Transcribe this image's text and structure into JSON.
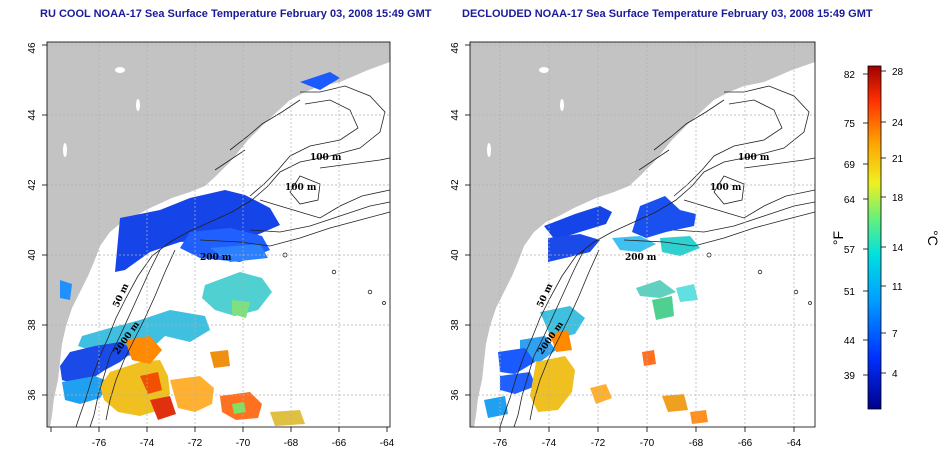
{
  "left_panel": {
    "title": "RU COOL NOAA-17 Sea Surface Temperature February 03, 2008 15:49 GMT"
  },
  "right_panel": {
    "title": "DECLOUDED NOAA-17 Sea Surface Temperature February 03, 2008 15:49 GMT"
  },
  "axes": {
    "x_ticks": [
      "-76",
      "-74",
      "-72",
      "-70",
      "-68",
      "-66",
      "-64"
    ],
    "y_ticks": [
      "36",
      "38",
      "40",
      "42",
      "44",
      "46"
    ]
  },
  "contour_labels": {
    "m100_a": "100 m",
    "m100_b": "100 m",
    "m200": "200 m",
    "m50": "50 m",
    "m2000": "2000 m"
  },
  "colorbar": {
    "f_label": "°F",
    "c_label": "°C",
    "f_ticks": [
      "82",
      "75",
      "69",
      "64",
      "57",
      "51",
      "44",
      "39"
    ],
    "c_ticks": [
      "28",
      "24",
      "21",
      "18",
      "14",
      "11",
      "7",
      "4"
    ]
  },
  "colors": {
    "land": "#c3c3c3",
    "ocean": "#ffffff",
    "title": "#1a1a9a",
    "grid": "#b0b0b0"
  }
}
